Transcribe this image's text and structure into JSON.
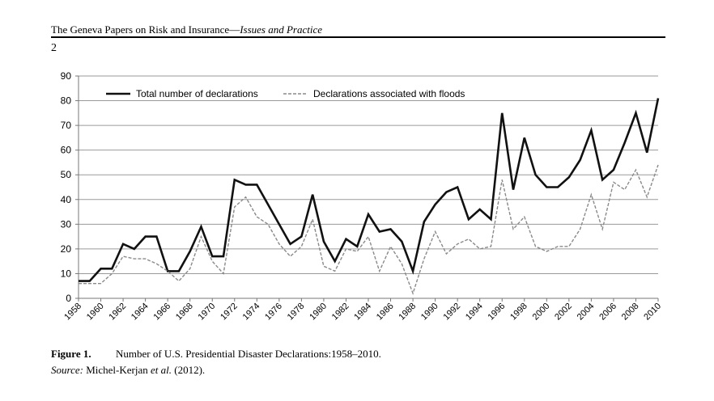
{
  "header": {
    "journal": "The Geneva Papers on Risk and Insurance—",
    "section": "Issues and Practice",
    "page": "2"
  },
  "chart_data": {
    "type": "line",
    "x": [
      1958,
      1959,
      1960,
      1961,
      1962,
      1963,
      1964,
      1965,
      1966,
      1967,
      1968,
      1969,
      1970,
      1971,
      1972,
      1973,
      1974,
      1975,
      1976,
      1977,
      1978,
      1979,
      1980,
      1981,
      1982,
      1983,
      1984,
      1985,
      1986,
      1987,
      1988,
      1989,
      1990,
      1991,
      1992,
      1993,
      1994,
      1995,
      1996,
      1997,
      1998,
      1999,
      2000,
      2001,
      2002,
      2003,
      2004,
      2005,
      2006,
      2007,
      2008,
      2009,
      2010
    ],
    "series": [
      {
        "name": "Total number of declarations",
        "color": "#111111",
        "linestyle": "solid",
        "values": [
          7,
          7,
          12,
          12,
          22,
          20,
          25,
          25,
          11,
          11,
          19,
          29,
          17,
          17,
          48,
          46,
          46,
          38,
          30,
          22,
          25,
          42,
          23,
          15,
          24,
          21,
          34,
          27,
          28,
          23,
          11,
          31,
          38,
          43,
          45,
          32,
          36,
          32,
          75,
          44,
          65,
          50,
          45,
          45,
          49,
          56,
          68,
          48,
          52,
          63,
          75,
          59,
          81
        ]
      },
      {
        "name": "Declarations associated with floods",
        "color": "#8a8a8a",
        "linestyle": "dashed",
        "values": [
          6,
          6,
          6,
          10,
          17,
          16,
          16,
          14,
          11,
          7,
          12,
          25,
          15,
          10,
          37,
          41,
          33,
          30,
          22,
          17,
          21,
          32,
          13,
          11,
          20,
          19,
          25,
          11,
          21,
          14,
          2,
          16,
          27,
          18,
          22,
          24,
          20,
          21,
          48,
          28,
          33,
          21,
          19,
          21,
          21,
          28,
          42,
          28,
          47,
          44,
          52,
          41,
          54
        ]
      }
    ],
    "xlim": [
      1958,
      2010
    ],
    "xticks": [
      1958,
      1960,
      1962,
      1964,
      1966,
      1968,
      1970,
      1972,
      1974,
      1976,
      1978,
      1980,
      1982,
      1984,
      1986,
      1988,
      1990,
      1992,
      1994,
      1996,
      1998,
      2000,
      2002,
      2004,
      2006,
      2008,
      2010
    ],
    "ylim": [
      0,
      90
    ],
    "yticks": [
      0,
      10,
      20,
      30,
      40,
      50,
      60,
      70,
      80,
      90
    ],
    "grid": true,
    "legend": "top"
  },
  "caption": {
    "label": "Figure 1.",
    "text": "Number of U.S. Presidential Disaster Declarations:1958–2010.",
    "source_label": "Source:",
    "source_author": "Michel-Kerjan",
    "source_etal": "et al.",
    "source_year": "(2012)."
  }
}
